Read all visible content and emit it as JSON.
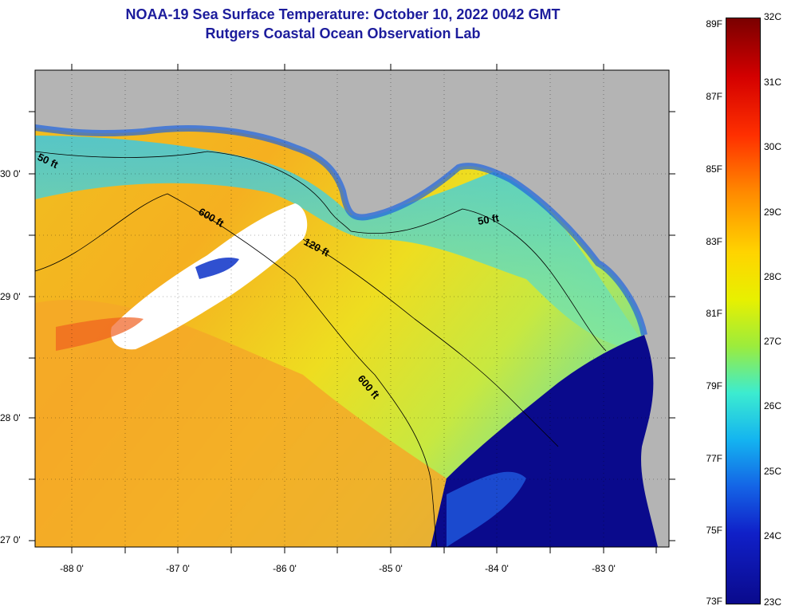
{
  "header": {
    "title": "NOAA-19 Sea Surface Temperature:  October 10, 2022 0042 GMT",
    "subtitle": "Rutgers Coastal Ocean Observation Lab"
  },
  "map": {
    "lat_labels": [
      "30 0'",
      "29 0'",
      "28 0'",
      "27 0'"
    ],
    "lon_labels": [
      "-88 0'",
      "-87 0'",
      "-86 0'",
      "-85 0'",
      "-84 0'",
      "-83 0'"
    ],
    "contour_labels": [
      "50 ft",
      "600 ft",
      "120 ft",
      "50 ft",
      "600 ft"
    ],
    "colors": {
      "land": "#b4b4b4",
      "cloud": "#ffffff",
      "warm": "#f5a623",
      "cool": "#1020c8"
    }
  },
  "colorbar": {
    "fahrenheit": [
      "89F",
      "87F",
      "85F",
      "83F",
      "81F",
      "79F",
      "77F",
      "75F",
      "73F"
    ],
    "celsius": [
      "32C",
      "31C",
      "30C",
      "29C",
      "28C",
      "27C",
      "26C",
      "25C",
      "24C",
      "23C"
    ]
  }
}
